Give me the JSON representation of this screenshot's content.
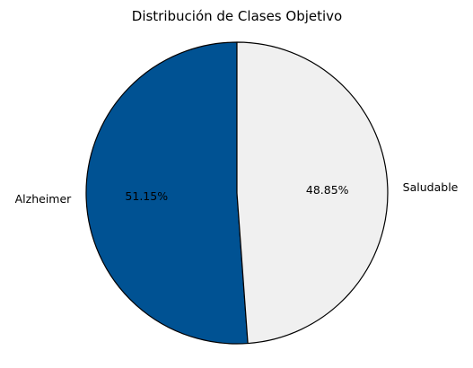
{
  "chart_data": {
    "type": "pie",
    "title": "Distribución de Clases Objetivo",
    "slices": [
      {
        "label": "Alzheimer",
        "value": 51.15,
        "pct_label": "51.15%",
        "color": "#005293"
      },
      {
        "label": "Saludable",
        "value": 48.85,
        "pct_label": "48.85%",
        "color": "#f0f0f0"
      }
    ],
    "start_angle_deg": 90,
    "direction": "counterclockwise",
    "edge_color": "#000000"
  }
}
